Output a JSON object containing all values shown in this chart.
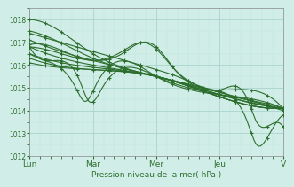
{
  "bg_color": "#d0ede8",
  "grid_color_major": "#a8d4cc",
  "grid_color_minor": "#c0e4de",
  "line_color": "#2d6e2d",
  "xlabel": "Pression niveau de la mer( hPa )",
  "ylim": [
    1012,
    1018.5
  ],
  "yticks": [
    1012,
    1013,
    1014,
    1015,
    1016,
    1017,
    1018
  ],
  "day_labels": [
    "Lun",
    "Mar",
    "Mer",
    "Jeu",
    "V"
  ],
  "day_positions": [
    0,
    48,
    96,
    144,
    192
  ],
  "n": 193
}
